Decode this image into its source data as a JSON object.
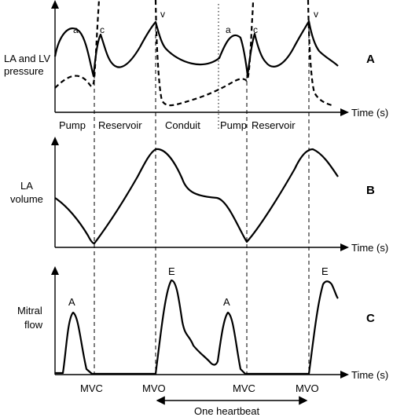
{
  "panel_a": {
    "ylabel_line1": "LA and LV",
    "ylabel_line2": "pressure",
    "panel_label": "A",
    "xlabel": "Time (s)",
    "wave_labels": {
      "a": "a",
      "c": "c",
      "v": "v"
    },
    "phases": [
      "Pump",
      "Reservoir",
      "Conduit",
      "Pump",
      "Reservoir"
    ]
  },
  "panel_b": {
    "ylabel_line1": "LA",
    "ylabel_line2": "volume",
    "panel_label": "B",
    "xlabel": "Time (s)"
  },
  "panel_c": {
    "ylabel_line1": "Mitral",
    "ylabel_line2": "flow",
    "panel_label": "C",
    "xlabel": "Time (s)",
    "wave_labels": {
      "a": "A",
      "e": "E"
    },
    "events": [
      "MVC",
      "MVO",
      "MVC",
      "MVO"
    ],
    "heartbeat_label": "One heartbeat"
  }
}
